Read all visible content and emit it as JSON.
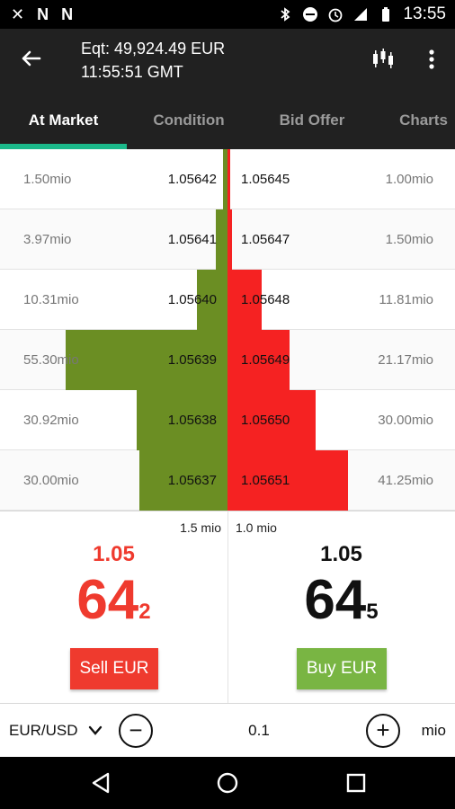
{
  "status_bar": {
    "time": "13:55",
    "left_icons": [
      "close-x-icon",
      "n-app-icon",
      "n-app-icon"
    ],
    "right_icons": [
      "bluetooth-icon",
      "do-not-disturb-icon",
      "alarm-icon",
      "lte-signal-icon",
      "battery-icon"
    ]
  },
  "app_bar": {
    "equity": "Eqt: 49,924.49 EUR",
    "time": "11:55:51 GMT",
    "icons": [
      "back-arrow-icon",
      "candlestick-icon",
      "more-vert-icon"
    ]
  },
  "tabs": [
    {
      "label": "At Market",
      "active": true
    },
    {
      "label": "Condition",
      "active": false
    },
    {
      "label": "Bid Offer",
      "active": false
    },
    {
      "label": "Charts",
      "active": false
    }
  ],
  "order_book": {
    "max_volume": 55.3,
    "rows": [
      {
        "bid_volume": "1.50mio",
        "bid_volume_value": 1.5,
        "bid_price": "1.05642",
        "ask_price": "1.05645",
        "ask_volume": "1.00mio",
        "ask_volume_value": 1.0
      },
      {
        "bid_volume": "3.97mio",
        "bid_volume_value": 3.97,
        "bid_price": "1.05641",
        "ask_price": "1.05647",
        "ask_volume": "1.50mio",
        "ask_volume_value": 1.5
      },
      {
        "bid_volume": "10.31mio",
        "bid_volume_value": 10.31,
        "bid_price": "1.05640",
        "ask_price": "1.05648",
        "ask_volume": "11.81mio",
        "ask_volume_value": 11.81
      },
      {
        "bid_volume": "55.30mio",
        "bid_volume_value": 55.3,
        "bid_price": "1.05639",
        "ask_price": "1.05649",
        "ask_volume": "21.17mio",
        "ask_volume_value": 21.17
      },
      {
        "bid_volume": "30.92mio",
        "bid_volume_value": 30.92,
        "bid_price": "1.05638",
        "ask_price": "1.05650",
        "ask_volume": "30.00mio",
        "ask_volume_value": 30.0
      },
      {
        "bid_volume": "30.00mio",
        "bid_volume_value": 30.0,
        "bid_price": "1.05637",
        "ask_price": "1.05651",
        "ask_volume": "41.25mio",
        "ask_volume_value": 41.25
      }
    ]
  },
  "sell": {
    "quantity": "1.5 mio",
    "price_prefix": "1.05",
    "price_big": "64",
    "price_pip": "2",
    "button_label": "Sell EUR"
  },
  "buy": {
    "quantity": "1.0 mio",
    "price_prefix": "1.05",
    "price_big": "64",
    "price_pip": "5",
    "button_label": "Buy EUR"
  },
  "control": {
    "pair": "EUR/USD",
    "amount": "0.1",
    "unit": "mio",
    "minus_symbol": "−",
    "plus_symbol": "+"
  },
  "colors": {
    "bid_bar": "#6b8e23",
    "ask_bar": "#f52222",
    "sell": "#ef3a2e",
    "buy": "#79b543",
    "tab_indicator": "#1bb98a"
  }
}
